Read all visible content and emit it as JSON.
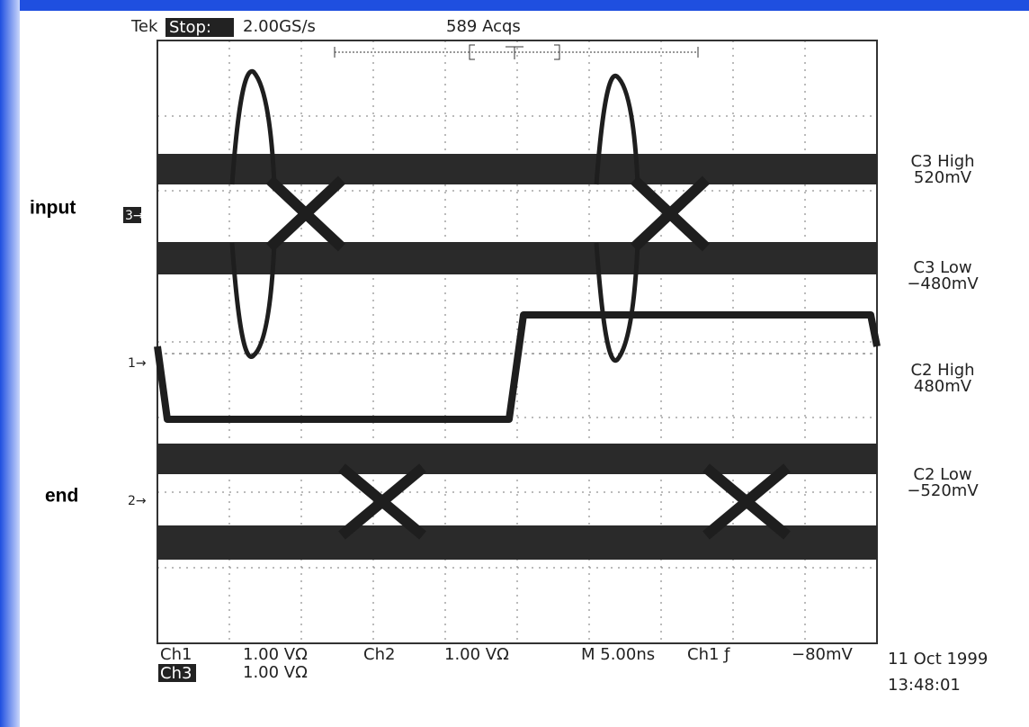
{
  "header": {
    "brand": "Tek",
    "status": "Stop:",
    "sample_rate": "2.00GS/s",
    "acquisitions": "589 Acqs"
  },
  "trace_labels": [
    "input",
    "end"
  ],
  "channel_markers": [
    "3→",
    "1→",
    "2→"
  ],
  "measurements": [
    {
      "label": "C3 High",
      "value": "520mV"
    },
    {
      "label": "C3 Low",
      "value": "−480mV"
    },
    {
      "label": "C2 High",
      "value": "480mV"
    },
    {
      "label": "C2 Low",
      "value": "−520mV"
    }
  ],
  "footer": {
    "ch1": "Ch1",
    "ch1_scale": "1.00 VΩ",
    "ch2": "Ch2",
    "ch2_scale": "1.00 VΩ",
    "timebase": "M 5.00ns",
    "trigger": "Ch1 ƒ",
    "trigger_level": "−80mV",
    "ch3": "Ch3",
    "ch3_scale": "1.00 VΩ",
    "date": "11 Oct 1999",
    "time": "13:48:01"
  }
}
